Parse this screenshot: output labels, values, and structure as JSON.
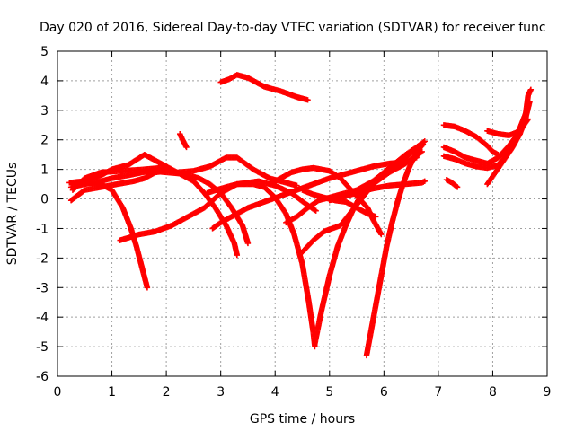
{
  "chart_data": {
    "type": "scatter",
    "title": "Day 020 of 2016, Sidereal Day-to-day VTEC variation (SDTVAR) for receiver func",
    "xlabel": "GPS time / hours",
    "ylabel": "SDTVAR / TECUs",
    "xlim": [
      0,
      9
    ],
    "ylim": [
      -6,
      5
    ],
    "x_ticks": [
      "0",
      "1",
      "2",
      "3",
      "4",
      "5",
      "6",
      "7",
      "8",
      "9"
    ],
    "y_ticks": [
      "-6",
      "-5",
      "-4",
      "-3",
      "-2",
      "-1",
      "0",
      "1",
      "2",
      "3",
      "4",
      "5"
    ],
    "grid": true,
    "marker": "plus",
    "color": "#ff0000",
    "series": [
      {
        "points": [
          [
            0.22,
            0.55
          ],
          [
            0.5,
            0.6
          ],
          [
            0.8,
            0.8
          ],
          [
            1.0,
            1.0
          ],
          [
            1.3,
            1.15
          ],
          [
            1.6,
            1.5
          ],
          [
            1.9,
            1.2
          ],
          [
            2.2,
            0.9
          ],
          [
            2.5,
            0.95
          ],
          [
            2.8,
            1.1
          ],
          [
            3.1,
            1.4
          ],
          [
            3.3,
            1.4
          ],
          [
            3.6,
            1.0
          ],
          [
            3.9,
            0.7
          ],
          [
            4.2,
            0.55
          ],
          [
            4.4,
            0.45
          ]
        ]
      },
      {
        "points": [
          [
            0.25,
            0.4
          ],
          [
            0.5,
            0.5
          ],
          [
            0.8,
            0.6
          ],
          [
            1.0,
            0.7
          ],
          [
            1.3,
            0.8
          ],
          [
            1.7,
            0.95
          ],
          [
            2.0,
            0.9
          ],
          [
            2.3,
            0.85
          ],
          [
            2.6,
            0.7
          ],
          [
            2.8,
            0.5
          ],
          [
            3.0,
            0.2
          ],
          [
            3.2,
            -0.3
          ],
          [
            3.4,
            -0.9
          ],
          [
            3.5,
            -1.5
          ]
        ]
      },
      {
        "points": [
          [
            0.3,
            0.5
          ],
          [
            0.5,
            0.55
          ],
          [
            0.8,
            0.5
          ],
          [
            1.0,
            0.3
          ],
          [
            1.2,
            -0.3
          ],
          [
            1.35,
            -1.0
          ],
          [
            1.45,
            -1.6
          ],
          [
            1.55,
            -2.3
          ],
          [
            1.65,
            -3.0
          ]
        ]
      },
      {
        "points": [
          [
            0.28,
            0.3
          ],
          [
            0.5,
            0.7
          ],
          [
            0.8,
            0.9
          ],
          [
            1.2,
            0.95
          ],
          [
            1.6,
            1.0
          ],
          [
            1.9,
            1.05
          ],
          [
            2.2,
            0.9
          ],
          [
            2.5,
            0.6
          ],
          [
            2.7,
            0.2
          ],
          [
            2.9,
            -0.3
          ],
          [
            3.1,
            -0.9
          ],
          [
            3.25,
            -1.5
          ],
          [
            3.3,
            -1.9
          ]
        ]
      },
      {
        "points": [
          [
            0.25,
            -0.05
          ],
          [
            0.5,
            0.3
          ],
          [
            0.8,
            0.4
          ],
          [
            1.1,
            0.5
          ],
          [
            1.4,
            0.6
          ],
          [
            1.6,
            0.7
          ],
          [
            1.8,
            0.9
          ],
          [
            2.0,
            0.95
          ]
        ]
      },
      {
        "points": [
          [
            1.15,
            -1.4
          ],
          [
            1.5,
            -1.2
          ],
          [
            1.8,
            -1.1
          ],
          [
            2.1,
            -0.9
          ],
          [
            2.4,
            -0.6
          ],
          [
            2.7,
            -0.3
          ],
          [
            3.0,
            0.2
          ],
          [
            3.3,
            0.5
          ],
          [
            3.7,
            0.6
          ],
          [
            4.0,
            0.45
          ],
          [
            4.3,
            0.2
          ],
          [
            4.55,
            -0.15
          ],
          [
            4.75,
            -0.4
          ]
        ]
      },
      {
        "points": [
          [
            2.25,
            2.2
          ],
          [
            2.3,
            2.0
          ],
          [
            2.37,
            1.75
          ]
        ]
      },
      {
        "points": [
          [
            3.0,
            3.95
          ],
          [
            3.15,
            4.05
          ],
          [
            3.3,
            4.2
          ],
          [
            3.5,
            4.1
          ],
          [
            3.8,
            3.8
          ],
          [
            4.1,
            3.65
          ],
          [
            4.4,
            3.45
          ],
          [
            4.6,
            3.35
          ]
        ]
      },
      {
        "points": [
          [
            2.85,
            -1.0
          ],
          [
            3.0,
            -0.8
          ],
          [
            3.3,
            -0.5
          ],
          [
            3.5,
            -0.3
          ],
          [
            3.8,
            -0.1
          ],
          [
            4.1,
            0.1
          ],
          [
            4.4,
            0.3
          ],
          [
            4.7,
            0.5
          ],
          [
            5.0,
            0.7
          ],
          [
            5.4,
            0.9
          ],
          [
            5.8,
            1.1
          ],
          [
            6.1,
            1.2
          ],
          [
            6.4,
            1.25
          ],
          [
            6.6,
            1.4
          ]
        ]
      },
      {
        "points": [
          [
            2.75,
            0.2
          ],
          [
            3.0,
            0.35
          ],
          [
            3.3,
            0.5
          ],
          [
            3.6,
            0.5
          ],
          [
            3.8,
            0.4
          ],
          [
            4.0,
            0.05
          ],
          [
            4.2,
            -0.5
          ],
          [
            4.35,
            -1.2
          ],
          [
            4.5,
            -2.2
          ],
          [
            4.62,
            -3.5
          ],
          [
            4.7,
            -4.5
          ],
          [
            4.73,
            -5.0
          ]
        ]
      },
      {
        "points": [
          [
            3.9,
            0.5
          ],
          [
            4.1,
            0.7
          ],
          [
            4.3,
            0.9
          ],
          [
            4.5,
            1.0
          ],
          [
            4.7,
            1.05
          ],
          [
            5.0,
            0.95
          ],
          [
            5.2,
            0.7
          ],
          [
            5.5,
            0.1
          ],
          [
            5.7,
            -0.3
          ],
          [
            5.8,
            -0.7
          ],
          [
            5.95,
            -1.2
          ]
        ]
      },
      {
        "points": [
          [
            4.5,
            0.3
          ],
          [
            4.7,
            0.15
          ],
          [
            4.9,
            0.05
          ],
          [
            5.1,
            -0.05
          ],
          [
            5.3,
            -0.1
          ],
          [
            5.5,
            -0.3
          ],
          [
            5.7,
            -0.5
          ],
          [
            5.85,
            -0.6
          ]
        ]
      },
      {
        "points": [
          [
            4.2,
            -0.8
          ],
          [
            4.4,
            -0.6
          ],
          [
            4.6,
            -0.3
          ],
          [
            4.8,
            -0.05
          ],
          [
            5.0,
            0.05
          ],
          [
            5.2,
            0.15
          ],
          [
            5.5,
            0.3
          ],
          [
            5.8,
            0.6
          ],
          [
            6.1,
            0.95
          ],
          [
            6.4,
            1.4
          ],
          [
            6.7,
            1.85
          ]
        ]
      },
      {
        "points": [
          [
            4.5,
            -1.8
          ],
          [
            4.7,
            -1.4
          ],
          [
            4.9,
            -1.1
          ],
          [
            5.2,
            -0.9
          ],
          [
            5.5,
            -0.2
          ],
          [
            5.8,
            0.5
          ],
          [
            6.1,
            0.9
          ],
          [
            6.4,
            1.2
          ],
          [
            6.7,
            1.6
          ]
        ]
      },
      {
        "points": [
          [
            5.0,
            -0.05
          ],
          [
            5.2,
            0.05
          ],
          [
            5.5,
            0.2
          ],
          [
            5.8,
            0.35
          ],
          [
            6.1,
            0.45
          ],
          [
            6.4,
            0.5
          ],
          [
            6.7,
            0.55
          ],
          [
            6.75,
            0.6
          ]
        ]
      },
      {
        "points": [
          [
            4.73,
            -4.9
          ],
          [
            4.85,
            -3.8
          ],
          [
            5.0,
            -2.6
          ],
          [
            5.15,
            -1.6
          ],
          [
            5.3,
            -0.9
          ],
          [
            5.45,
            -0.3
          ],
          [
            5.6,
            0.2
          ],
          [
            5.8,
            0.6
          ],
          [
            6.0,
            0.9
          ],
          [
            6.2,
            1.2
          ],
          [
            6.4,
            1.5
          ],
          [
            6.6,
            1.75
          ],
          [
            6.75,
            1.95
          ]
        ]
      },
      {
        "points": [
          [
            5.68,
            -5.3
          ],
          [
            5.75,
            -4.6
          ],
          [
            5.85,
            -3.6
          ],
          [
            5.95,
            -2.6
          ],
          [
            6.05,
            -1.6
          ],
          [
            6.15,
            -0.8
          ],
          [
            6.25,
            -0.1
          ],
          [
            6.35,
            0.5
          ],
          [
            6.45,
            1.0
          ],
          [
            6.55,
            1.4
          ],
          [
            6.65,
            1.7
          ],
          [
            6.72,
            1.85
          ]
        ]
      },
      {
        "points": [
          [
            7.15,
            0.65
          ],
          [
            7.25,
            0.55
          ],
          [
            7.35,
            0.4
          ]
        ]
      },
      {
        "points": [
          [
            7.1,
            2.5
          ],
          [
            7.3,
            2.45
          ],
          [
            7.5,
            2.3
          ],
          [
            7.7,
            2.1
          ],
          [
            7.9,
            1.8
          ],
          [
            8.0,
            1.6
          ],
          [
            8.1,
            1.5
          ]
        ]
      },
      {
        "points": [
          [
            7.1,
            1.75
          ],
          [
            7.3,
            1.6
          ],
          [
            7.5,
            1.4
          ],
          [
            7.7,
            1.3
          ],
          [
            7.9,
            1.2
          ],
          [
            8.1,
            1.4
          ],
          [
            8.3,
            1.8
          ],
          [
            8.5,
            2.3
          ],
          [
            8.65,
            2.7
          ]
        ]
      },
      {
        "points": [
          [
            7.1,
            1.45
          ],
          [
            7.3,
            1.35
          ],
          [
            7.5,
            1.2
          ],
          [
            7.7,
            1.1
          ],
          [
            7.9,
            1.05
          ],
          [
            8.1,
            1.15
          ],
          [
            8.3,
            1.6
          ],
          [
            8.5,
            2.4
          ],
          [
            8.65,
            3.1
          ]
        ]
      },
      {
        "points": [
          [
            7.9,
            2.3
          ],
          [
            8.1,
            2.2
          ],
          [
            8.3,
            2.15
          ],
          [
            8.5,
            2.3
          ],
          [
            8.6,
            2.8
          ],
          [
            8.65,
            3.5
          ],
          [
            8.7,
            3.7
          ]
        ]
      },
      {
        "points": [
          [
            7.9,
            0.5
          ],
          [
            8.05,
            0.9
          ],
          [
            8.2,
            1.3
          ],
          [
            8.35,
            1.7
          ],
          [
            8.5,
            2.2
          ],
          [
            8.6,
            2.7
          ],
          [
            8.68,
            3.3
          ]
        ]
      }
    ]
  }
}
